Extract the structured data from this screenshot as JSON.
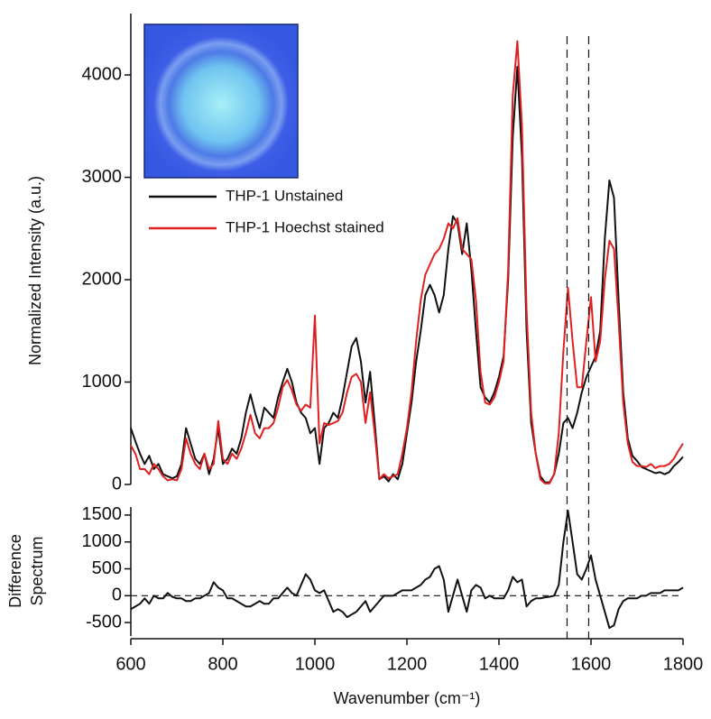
{
  "chart_data": [
    {
      "type": "line",
      "ylabel": "Normalized Intensity (a.u.)",
      "legend": "top-left",
      "xlim": [
        600,
        1800
      ],
      "ylim": [
        0,
        4600
      ],
      "yticks": [
        0,
        1000,
        2000,
        3000,
        4000
      ],
      "vlines": [
        1548,
        1595
      ],
      "x": [
        600,
        610,
        620,
        630,
        640,
        650,
        660,
        670,
        680,
        690,
        700,
        710,
        720,
        730,
        740,
        750,
        760,
        770,
        780,
        790,
        800,
        810,
        820,
        830,
        840,
        850,
        860,
        870,
        880,
        890,
        900,
        910,
        920,
        930,
        940,
        950,
        960,
        970,
        980,
        990,
        1000,
        1010,
        1020,
        1030,
        1040,
        1050,
        1060,
        1070,
        1080,
        1090,
        1100,
        1110,
        1120,
        1130,
        1140,
        1150,
        1160,
        1170,
        1180,
        1190,
        1200,
        1210,
        1220,
        1230,
        1240,
        1250,
        1260,
        1270,
        1280,
        1290,
        1300,
        1310,
        1320,
        1330,
        1340,
        1350,
        1360,
        1370,
        1380,
        1390,
        1400,
        1410,
        1420,
        1430,
        1440,
        1450,
        1460,
        1470,
        1480,
        1490,
        1500,
        1510,
        1520,
        1530,
        1540,
        1550,
        1560,
        1570,
        1580,
        1590,
        1600,
        1610,
        1620,
        1630,
        1640,
        1650,
        1660,
        1670,
        1680,
        1690,
        1700,
        1710,
        1720,
        1730,
        1740,
        1750,
        1760,
        1770,
        1780,
        1790,
        1800
      ],
      "series": [
        {
          "name": "THP-1 Unstained",
          "color": "#111111",
          "values": [
            550,
            420,
            300,
            200,
            280,
            150,
            200,
            100,
            80,
            60,
            80,
            200,
            550,
            400,
            250,
            200,
            300,
            100,
            250,
            550,
            200,
            250,
            350,
            300,
            450,
            700,
            880,
            700,
            550,
            750,
            700,
            650,
            850,
            1000,
            1130,
            1000,
            800,
            700,
            650,
            500,
            550,
            200,
            550,
            600,
            700,
            650,
            850,
            1100,
            1350,
            1430,
            1200,
            800,
            1100,
            600,
            50,
            80,
            30,
            100,
            50,
            200,
            500,
            800,
            1200,
            1500,
            1850,
            1950,
            1850,
            1680,
            1850,
            2300,
            2620,
            2550,
            2250,
            2550,
            2100,
            1500,
            950,
            850,
            800,
            900,
            1050,
            1250,
            2000,
            3400,
            4080,
            3200,
            1500,
            600,
            300,
            80,
            20,
            20,
            100,
            300,
            600,
            650,
            550,
            700,
            900,
            1050,
            1150,
            1250,
            1500,
            2400,
            2970,
            2800,
            1800,
            900,
            450,
            280,
            230,
            170,
            150,
            130,
            110,
            120,
            100,
            120,
            180,
            220,
            270
          ]
        },
        {
          "name": "THP-1 Hoechst stained",
          "color": "#e02020",
          "values": [
            380,
            300,
            150,
            150,
            100,
            200,
            150,
            80,
            40,
            50,
            40,
            150,
            450,
            300,
            200,
            150,
            300,
            150,
            200,
            620,
            250,
            200,
            300,
            250,
            350,
            500,
            680,
            500,
            450,
            550,
            550,
            600,
            750,
            950,
            1020,
            920,
            780,
            720,
            780,
            750,
            1650,
            400,
            600,
            580,
            600,
            620,
            700,
            900,
            1050,
            1080,
            1000,
            600,
            900,
            500,
            50,
            100,
            60,
            80,
            100,
            300,
            550,
            900,
            1400,
            1800,
            2050,
            2150,
            2250,
            2300,
            2400,
            2550,
            2500,
            2600,
            2300,
            2250,
            2200,
            1800,
            1100,
            800,
            780,
            850,
            1000,
            1200,
            2100,
            3800,
            4330,
            3500,
            1700,
            700,
            300,
            50,
            10,
            10,
            100,
            500,
            1300,
            1920,
            1400,
            950,
            950,
            1400,
            1830,
            1200,
            1400,
            2000,
            2380,
            2300,
            1600,
            800,
            400,
            220,
            180,
            180,
            170,
            200,
            160,
            180,
            180,
            200,
            250,
            330,
            400
          ]
        }
      ]
    },
    {
      "type": "line",
      "xlabel": "Wavenumber (cm⁻¹)",
      "ylabel": [
        "Difference",
        "Spectrum"
      ],
      "xlim": [
        600,
        1800
      ],
      "ylim": [
        -750,
        1650
      ],
      "xticks": [
        600,
        800,
        1000,
        1200,
        1400,
        1600,
        1800
      ],
      "yticks": [
        -500,
        0,
        500,
        1000,
        1500
      ],
      "hlines": [
        0
      ],
      "x": [
        600,
        610,
        620,
        630,
        640,
        650,
        660,
        670,
        680,
        690,
        700,
        710,
        720,
        730,
        740,
        750,
        760,
        770,
        780,
        790,
        800,
        810,
        820,
        830,
        840,
        850,
        860,
        870,
        880,
        890,
        900,
        910,
        920,
        930,
        940,
        950,
        960,
        970,
        980,
        990,
        1000,
        1010,
        1020,
        1030,
        1040,
        1050,
        1060,
        1070,
        1080,
        1090,
        1100,
        1110,
        1120,
        1130,
        1140,
        1150,
        1160,
        1170,
        1180,
        1190,
        1200,
        1210,
        1220,
        1230,
        1240,
        1250,
        1260,
        1270,
        1280,
        1290,
        1300,
        1310,
        1320,
        1330,
        1340,
        1350,
        1360,
        1370,
        1380,
        1390,
        1400,
        1410,
        1420,
        1430,
        1440,
        1450,
        1460,
        1470,
        1480,
        1490,
        1500,
        1510,
        1520,
        1530,
        1540,
        1550,
        1560,
        1570,
        1580,
        1590,
        1600,
        1610,
        1620,
        1630,
        1640,
        1650,
        1660,
        1670,
        1680,
        1690,
        1700,
        1710,
        1720,
        1730,
        1740,
        1750,
        1760,
        1770,
        1780,
        1790,
        1800
      ],
      "series": [
        {
          "color": "#111111",
          "values": [
            -250,
            -200,
            -150,
            -50,
            -150,
            0,
            -50,
            -50,
            50,
            -20,
            -50,
            -50,
            -100,
            -100,
            -50,
            -50,
            0,
            50,
            250,
            150,
            100,
            -50,
            -50,
            -100,
            -150,
            -200,
            -200,
            -150,
            -100,
            -150,
            -150,
            -50,
            -50,
            50,
            150,
            50,
            0,
            200,
            400,
            300,
            100,
            50,
            100,
            -100,
            -300,
            -250,
            -300,
            -400,
            -350,
            -300,
            -200,
            -100,
            -300,
            -200,
            -100,
            0,
            0,
            0,
            50,
            100,
            100,
            100,
            150,
            200,
            300,
            350,
            500,
            550,
            300,
            -300,
            0,
            300,
            0,
            -300,
            100,
            200,
            150,
            -50,
            0,
            -50,
            -50,
            -50,
            100,
            350,
            250,
            300,
            -200,
            -100,
            -50,
            -50,
            -30,
            -20,
            0,
            200,
            1000,
            1580,
            1000,
            400,
            300,
            500,
            750,
            300,
            0,
            -300,
            -600,
            -550,
            -250,
            -100,
            -50,
            -50,
            -50,
            0,
            0,
            50,
            50,
            50,
            100,
            100,
            100,
            100,
            150
          ]
        }
      ]
    }
  ]
}
